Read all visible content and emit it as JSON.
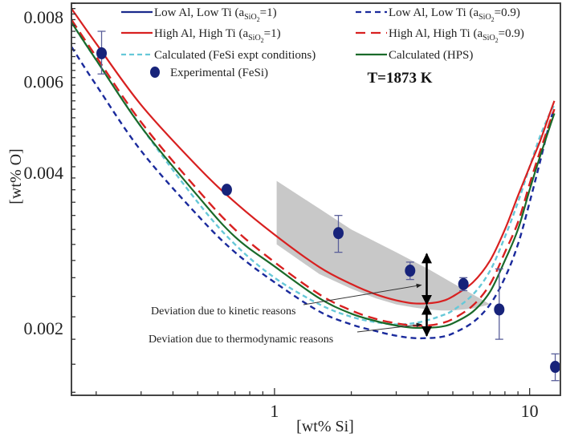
{
  "chart_data": {
    "type": "line",
    "title": "",
    "xlabel": "[wt% Si]",
    "ylabel": "[wt% O]",
    "xscale": "log",
    "yscale": "log",
    "xlim": [
      0.16,
      13.2
    ],
    "ylim": [
      0.00148,
      0.0085
    ],
    "grid": false,
    "legend_placement": "top",
    "x_ticks": [
      {
        "value": 1,
        "label": "1"
      },
      {
        "value": 10,
        "label": "10"
      }
    ],
    "y_ticks": [
      {
        "value": 0.002,
        "label": "0.002"
      },
      {
        "value": 0.004,
        "label": "0.004"
      },
      {
        "value": 0.006,
        "label": "0.006"
      },
      {
        "value": 0.008,
        "label": "0.008"
      }
    ],
    "series": [
      {
        "name": "Low Al, Low Ti (aSiO2=1)",
        "label_main": "Low Al, Low Ti (a",
        "label_sub": "SiO",
        "label_sub2": "2",
        "label_tail": "=1)",
        "color": "#1a2a8c",
        "style": "solid",
        "legend_col": 0,
        "legend_row": 0,
        "visible_in_plot": false,
        "points": []
      },
      {
        "name": "Low Al, Low Ti (aSiO2=0.9)",
        "label_main": "Low Al, Low Ti (a",
        "label_sub": "SiO",
        "label_sub2": "2",
        "label_tail": "=0.9)",
        "color": "#1a2a9c",
        "style": "dash",
        "legend_col": 1,
        "legend_row": 0,
        "visible_in_plot": true,
        "points": [
          [
            0.16,
            0.007
          ],
          [
            0.2,
            0.0059
          ],
          [
            0.3,
            0.0044
          ],
          [
            0.5,
            0.0033
          ],
          [
            0.7,
            0.0028
          ],
          [
            1.0,
            0.00245
          ],
          [
            1.5,
            0.00215
          ],
          [
            2.0,
            0.00203
          ],
          [
            2.5,
            0.00197
          ],
          [
            3.0,
            0.00193
          ],
          [
            3.5,
            0.00191
          ],
          [
            4.0,
            0.00191
          ],
          [
            4.5,
            0.00192
          ],
          [
            5.0,
            0.00195
          ],
          [
            6.0,
            0.00205
          ],
          [
            7.0,
            0.00222
          ],
          [
            8.0,
            0.0025
          ],
          [
            9.0,
            0.0029
          ],
          [
            10.0,
            0.0035
          ],
          [
            11.0,
            0.0042
          ],
          [
            12.0,
            0.005
          ],
          [
            12.5,
            0.0053
          ]
        ]
      },
      {
        "name": "High Al, High Ti (aSiO2=1)",
        "label_main": "High Al, High Ti (a",
        "label_sub": "SiO",
        "label_sub2": "2",
        "label_tail": "=1)",
        "color": "#d82020",
        "style": "solid",
        "legend_col": 0,
        "legend_row": 1,
        "visible_in_plot": true,
        "points": [
          [
            0.16,
            0.0083
          ],
          [
            0.2,
            0.0071
          ],
          [
            0.3,
            0.0054
          ],
          [
            0.5,
            0.0041
          ],
          [
            0.7,
            0.0035
          ],
          [
            1.0,
            0.00303
          ],
          [
            1.5,
            0.00262
          ],
          [
            2.0,
            0.00243
          ],
          [
            2.5,
            0.00232
          ],
          [
            3.0,
            0.00226
          ],
          [
            3.5,
            0.00223
          ],
          [
            4.0,
            0.00223
          ],
          [
            4.5,
            0.00225
          ],
          [
            5.0,
            0.0023
          ],
          [
            6.0,
            0.00245
          ],
          [
            7.0,
            0.0027
          ],
          [
            8.0,
            0.0031
          ],
          [
            9.0,
            0.0036
          ],
          [
            10.0,
            0.0041
          ],
          [
            11.0,
            0.0046
          ],
          [
            12.0,
            0.0052
          ],
          [
            12.5,
            0.0055
          ]
        ]
      },
      {
        "name": "High Al, High Ti (aSiO2=0.9)",
        "label_main": "High Al, High Ti (a",
        "label_sub": "SiO",
        "label_sub2": "2",
        "label_tail": "=0.9)",
        "color": "#d82020",
        "style": "longdash",
        "legend_col": 1,
        "legend_row": 1,
        "visible_in_plot": true,
        "points": [
          [
            0.16,
            0.0079
          ],
          [
            0.2,
            0.0067
          ],
          [
            0.3,
            0.005
          ],
          [
            0.5,
            0.0037
          ],
          [
            0.7,
            0.0031
          ],
          [
            1.0,
            0.00268
          ],
          [
            1.5,
            0.00232
          ],
          [
            2.0,
            0.00216
          ],
          [
            2.5,
            0.00208
          ],
          [
            3.0,
            0.00204
          ],
          [
            3.5,
            0.00202
          ],
          [
            4.0,
            0.00202
          ],
          [
            4.5,
            0.00204
          ],
          [
            5.0,
            0.00208
          ],
          [
            6.0,
            0.00221
          ],
          [
            7.0,
            0.00243
          ],
          [
            8.0,
            0.0028
          ],
          [
            9.0,
            0.0032
          ],
          [
            10.0,
            0.0038
          ],
          [
            11.0,
            0.0044
          ],
          [
            12.0,
            0.005
          ],
          [
            12.5,
            0.0053
          ]
        ]
      },
      {
        "name": "Calculated (FeSi expt conditions)",
        "label_main": "Calculated (FeSi expt conditions)",
        "color": "#66c8d8",
        "style": "shortdash",
        "legend_col": 0,
        "legend_row": 2,
        "visible_in_plot": true,
        "points": [
          [
            0.16,
            0.0078
          ],
          [
            0.2,
            0.0066
          ],
          [
            0.3,
            0.0049
          ],
          [
            0.5,
            0.0035
          ],
          [
            0.7,
            0.0029
          ],
          [
            1.0,
            0.0025
          ],
          [
            1.5,
            0.00222
          ],
          [
            2.0,
            0.0021
          ],
          [
            2.5,
            0.00205
          ],
          [
            3.0,
            0.00203
          ],
          [
            3.5,
            0.00204
          ],
          [
            4.0,
            0.00207
          ],
          [
            4.5,
            0.00211
          ],
          [
            5.0,
            0.00216
          ],
          [
            6.0,
            0.00232
          ],
          [
            7.0,
            0.00258
          ],
          [
            8.0,
            0.003
          ],
          [
            9.0,
            0.0035
          ],
          [
            10.0,
            0.0041
          ],
          [
            11.0,
            0.0047
          ],
          [
            12.0,
            0.0052
          ],
          [
            12.5,
            0.0054
          ]
        ]
      },
      {
        "name": "Calculated (HPS)",
        "label_main": "Calculated (HPS)",
        "color": "#1a6a2a",
        "style": "solid",
        "legend_col": 1,
        "legend_row": 2,
        "visible_in_plot": true,
        "points": [
          [
            0.16,
            0.0078
          ],
          [
            0.2,
            0.0066
          ],
          [
            0.3,
            0.0049
          ],
          [
            0.5,
            0.0036
          ],
          [
            0.7,
            0.003
          ],
          [
            1.0,
            0.00263
          ],
          [
            1.5,
            0.00228
          ],
          [
            2.0,
            0.00213
          ],
          [
            2.5,
            0.00206
          ],
          [
            3.0,
            0.00202
          ],
          [
            3.5,
            0.002
          ],
          [
            4.0,
            0.002
          ],
          [
            4.5,
            0.00201
          ],
          [
            5.0,
            0.00204
          ],
          [
            6.0,
            0.00215
          ],
          [
            7.0,
            0.00235
          ],
          [
            8.0,
            0.0027
          ],
          [
            9.0,
            0.0031
          ],
          [
            10.0,
            0.0037
          ],
          [
            11.0,
            0.0043
          ],
          [
            12.0,
            0.0049
          ],
          [
            12.5,
            0.0052
          ]
        ]
      }
    ],
    "experimental": {
      "name": "Experimental (FeSi)",
      "label_main": "Experimental (FeSi)",
      "color": "#17237a",
      "errorbar_color": "#5a5f9a",
      "points": [
        {
          "x": 0.21,
          "y": 0.0068,
          "ylo": 0.0062,
          "yhi": 0.0075
        },
        {
          "x": 0.65,
          "y": 0.0037,
          "ylo": 0.00365,
          "yhi": 0.00375
        },
        {
          "x": 1.78,
          "y": 0.00305,
          "ylo": 0.0028,
          "yhi": 0.0033
        },
        {
          "x": 3.4,
          "y": 0.00258,
          "ylo": 0.00248,
          "yhi": 0.00268
        },
        {
          "x": 5.5,
          "y": 0.00243,
          "ylo": 0.00236,
          "yhi": 0.0025
        },
        {
          "x": 7.6,
          "y": 0.00217,
          "ylo": 0.0019,
          "yhi": 0.0026
        },
        {
          "x": 12.6,
          "y": 0.00168,
          "ylo": 0.00158,
          "yhi": 0.00178
        }
      ]
    },
    "shaded_region": {
      "color": "#c8c8c8",
      "upper": [
        [
          1.02,
          0.00385
        ],
        [
          1.5,
          0.0034
        ],
        [
          2.0,
          0.0031
        ],
        [
          3.0,
          0.0028
        ],
        [
          4.0,
          0.0026
        ],
        [
          5.0,
          0.00244
        ],
        [
          6.0,
          0.00232
        ],
        [
          7.0,
          0.00222
        ]
      ],
      "lower": [
        [
          7.0,
          0.00222
        ],
        [
          6.0,
          0.00218
        ],
        [
          5.0,
          0.00216
        ],
        [
          4.5,
          0.00216
        ],
        [
          4.0,
          0.00217
        ],
        [
          3.5,
          0.00219
        ],
        [
          3.0,
          0.00222
        ],
        [
          2.5,
          0.00228
        ],
        [
          2.0,
          0.00238
        ],
        [
          1.5,
          0.00254
        ],
        [
          1.02,
          0.0029
        ]
      ]
    },
    "annotations": [
      {
        "text": "Deviation due to kinetic reasons",
        "x": 0.28,
        "y": 0.00212,
        "arrow_to": [
          3.82,
          0.00242
        ]
      },
      {
        "text": "Deviation due to thermodynamic reasons",
        "x": 0.28,
        "y": 0.00188,
        "arrow_to": [
          3.82,
          0.00203
        ]
      },
      {
        "text": "T=1873 K",
        "x": 4.3,
        "y": 0.0062,
        "bold": true
      }
    ],
    "double_arrows": [
      {
        "x": 3.95,
        "y1": 0.00278,
        "y2": 0.00222
      },
      {
        "x": 3.95,
        "y1": 0.00221,
        "y2": 0.00193
      }
    ]
  }
}
